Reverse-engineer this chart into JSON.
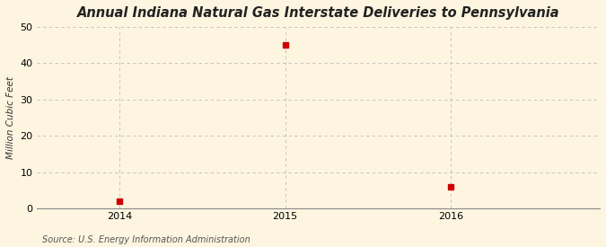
{
  "title": "Annual Indiana Natural Gas Interstate Deliveries to Pennsylvania",
  "ylabel": "Million Cubic Feet",
  "source": "Source: U.S. Energy Information Administration",
  "x": [
    2014,
    2015,
    2016
  ],
  "y": [
    2,
    45,
    6
  ],
  "xlim": [
    2013.5,
    2016.9
  ],
  "ylim": [
    0,
    50
  ],
  "yticks": [
    0,
    10,
    20,
    30,
    40,
    50
  ],
  "xticks": [
    2014,
    2015,
    2016
  ],
  "marker_color": "#cc0000",
  "marker": "s",
  "marker_size": 4,
  "bg_color": "#fdf5e0",
  "plot_bg_color": "#fdf5e0",
  "grid_color": "#bbbbbb",
  "grid_style": "--",
  "title_fontsize": 10.5,
  "ylabel_fontsize": 7.5,
  "tick_fontsize": 8,
  "source_fontsize": 7
}
